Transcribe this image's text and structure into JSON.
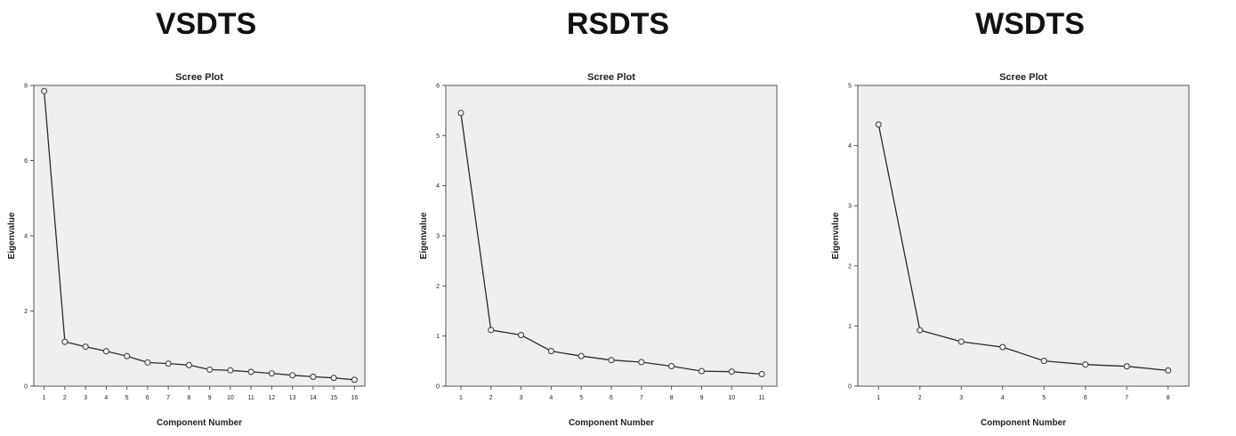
{
  "panels": [
    {
      "label": "VSDTS"
    },
    {
      "label": "RSDTS"
    },
    {
      "label": "WSDTS"
    }
  ],
  "chart_data": [
    {
      "type": "line",
      "title": "Scree Plot",
      "xlabel": "Component Number",
      "ylabel": "Eigenvalue",
      "x": [
        1,
        2,
        3,
        4,
        5,
        6,
        7,
        8,
        9,
        10,
        11,
        12,
        13,
        14,
        15,
        16
      ],
      "values": [
        7.85,
        1.18,
        1.05,
        0.93,
        0.8,
        0.63,
        0.6,
        0.56,
        0.44,
        0.42,
        0.38,
        0.34,
        0.29,
        0.25,
        0.22,
        0.17
      ],
      "yticks": [
        0,
        2,
        4,
        6,
        8
      ],
      "ylim": [
        0,
        8
      ],
      "xlim": [
        0.5,
        16.5
      ],
      "grid": false,
      "markers": "circle",
      "colors": {
        "background": "#efefef",
        "line": "#2b2b2b"
      }
    },
    {
      "type": "line",
      "title": "Scree Plot",
      "xlabel": "Component Number",
      "ylabel": "Eigenvalue",
      "x": [
        1,
        2,
        3,
        4,
        5,
        6,
        7,
        8,
        9,
        10,
        11
      ],
      "values": [
        5.45,
        1.12,
        1.02,
        0.7,
        0.6,
        0.52,
        0.48,
        0.4,
        0.3,
        0.29,
        0.24
      ],
      "yticks": [
        0,
        1,
        2,
        3,
        4,
        5,
        6
      ],
      "ylim": [
        0,
        6
      ],
      "xlim": [
        0.5,
        11.5
      ],
      "grid": false,
      "markers": "circle",
      "colors": {
        "background": "#efefef",
        "line": "#2b2b2b"
      }
    },
    {
      "type": "line",
      "title": "Scree Plot",
      "xlabel": "Component Number",
      "ylabel": "Eigenvalue",
      "x": [
        1,
        2,
        3,
        4,
        5,
        6,
        7,
        8
      ],
      "values": [
        4.35,
        0.93,
        0.74,
        0.65,
        0.42,
        0.36,
        0.33,
        0.26
      ],
      "yticks": [
        0,
        1,
        2,
        3,
        4,
        5
      ],
      "ylim": [
        0,
        5
      ],
      "xlim": [
        0.5,
        8.5
      ],
      "grid": false,
      "markers": "circle",
      "colors": {
        "background": "#efefef",
        "line": "#2b2b2b"
      }
    }
  ]
}
